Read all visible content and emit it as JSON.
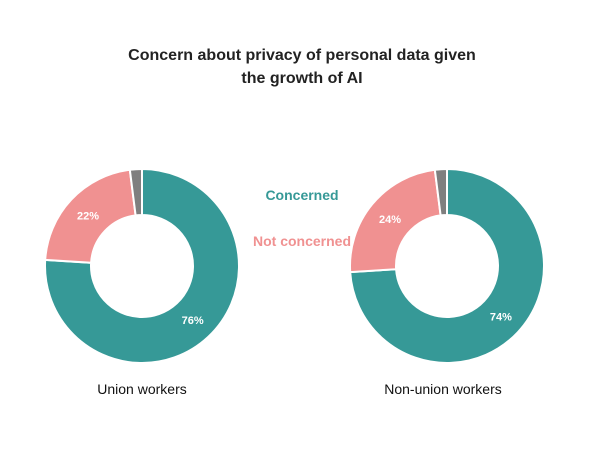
{
  "chart_data": {
    "type": "pie",
    "variant": "donut",
    "title_lines": [
      "Concern about privacy of personal data given",
      "the growth of AI"
    ],
    "legend": [
      {
        "label": "Concerned",
        "color": "#369997"
      },
      {
        "label": "Not concerned",
        "color": "#f09191"
      }
    ],
    "legend_placement": "center",
    "series": [
      {
        "label": "Union workers",
        "slices": [
          {
            "category": "Concerned",
            "value": 76,
            "label": "76%",
            "color": "#369997"
          },
          {
            "category": "Not concerned",
            "value": 22,
            "label": "22%",
            "color": "#f09191"
          },
          {
            "category": "Other",
            "value": 2,
            "label": "",
            "color": "#7f7f7f"
          }
        ]
      },
      {
        "label": "Non-union workers",
        "slices": [
          {
            "category": "Concerned",
            "value": 74,
            "label": "74%",
            "color": "#369997"
          },
          {
            "category": "Not concerned",
            "value": 24,
            "label": "24%",
            "color": "#f09191"
          },
          {
            "category": "Other",
            "value": 2,
            "label": "",
            "color": "#7f7f7f"
          }
        ]
      }
    ]
  }
}
